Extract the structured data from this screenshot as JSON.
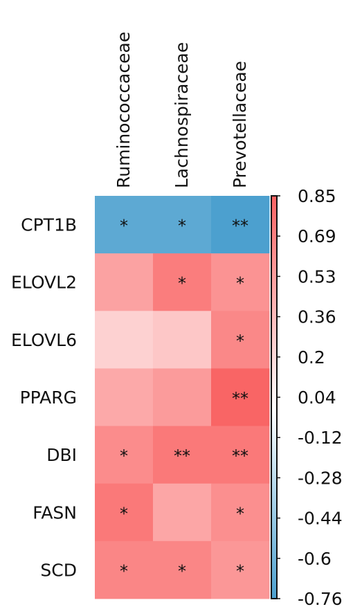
{
  "chart_data": {
    "type": "heatmap",
    "title": "",
    "xlabel": "",
    "ylabel": "",
    "columns": [
      "Ruminococcaceae",
      "Lachnospiraceae",
      "Prevotellaceae"
    ],
    "rows": [
      "CPT1B",
      "ELOVL2",
      "ELOVL6",
      "PPARG",
      "DBI",
      "FASN",
      "SCD"
    ],
    "values": [
      [
        -0.68,
        -0.68,
        -0.75
      ],
      [
        0.5,
        0.7,
        0.58
      ],
      [
        0.25,
        0.3,
        0.64
      ],
      [
        0.46,
        0.54,
        0.83
      ],
      [
        0.62,
        0.72,
        0.72
      ],
      [
        0.72,
        0.48,
        0.6
      ],
      [
        0.65,
        0.65,
        0.56
      ]
    ],
    "significance": [
      [
        "*",
        "*",
        "**"
      ],
      [
        "",
        "*",
        "*"
      ],
      [
        "",
        "",
        "*"
      ],
      [
        "",
        "",
        "**"
      ],
      [
        "*",
        "**",
        "**"
      ],
      [
        "*",
        "",
        "*"
      ],
      [
        "*",
        "*",
        "*"
      ]
    ],
    "colorbar": {
      "range": [
        -0.76,
        0.85
      ],
      "ticks": [
        "0.85",
        "0.69",
        "0.53",
        "0.36",
        "0.2",
        "0.04",
        "-0.12",
        "-0.28",
        "-0.44",
        "-0.6",
        "-0.76"
      ],
      "low_color": "#4a9fce",
      "mid_color": "#ffffff",
      "high_color": "#f96161"
    },
    "grid": false,
    "legend": "right"
  }
}
